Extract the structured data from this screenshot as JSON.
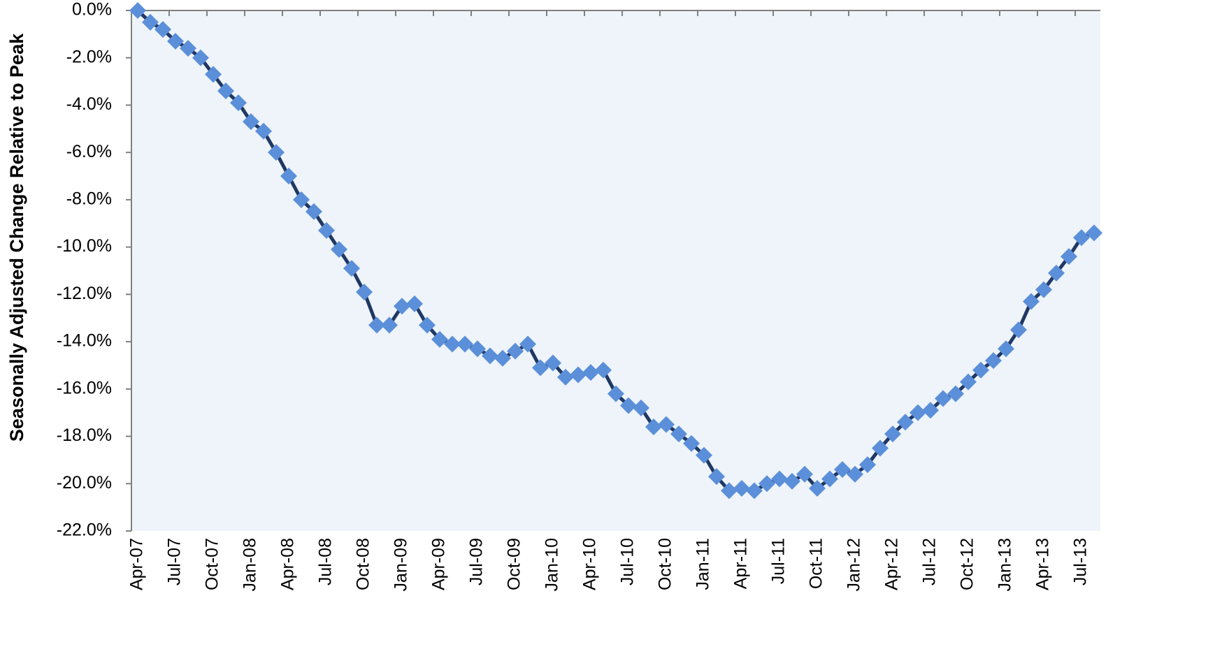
{
  "chart_data": {
    "type": "line",
    "y_label": "Seasonally Adjusted Change Relative to Peak",
    "categories": [
      "Apr-07",
      null,
      null,
      "Jul-07",
      null,
      null,
      "Oct-07",
      null,
      null,
      "Jan-08",
      null,
      null,
      "Apr-08",
      null,
      null,
      "Jul-08",
      null,
      null,
      "Oct-08",
      null,
      null,
      "Jan-09",
      null,
      null,
      "Apr-09",
      null,
      null,
      "Jul-09",
      null,
      null,
      "Oct-09",
      null,
      null,
      "Jan-10",
      null,
      null,
      "Apr-10",
      null,
      null,
      "Jul-10",
      null,
      null,
      "Oct-10",
      null,
      null,
      "Jan-11",
      null,
      null,
      "Apr-11",
      null,
      null,
      "Jul-11",
      null,
      null,
      "Oct-11",
      null,
      null,
      "Jan-12",
      null,
      null,
      "Apr-12",
      null,
      null,
      "Jul-12",
      null,
      null,
      "Oct-12",
      null,
      null,
      "Jan-13",
      null,
      null,
      "Apr-13",
      null,
      null,
      "Jul-13",
      null
    ],
    "values": [
      0.0,
      -0.5,
      -0.8,
      -1.3,
      -1.6,
      -2.0,
      -2.7,
      -3.4,
      -3.9,
      -4.7,
      -5.1,
      -6.0,
      -7.0,
      -8.0,
      -8.5,
      -9.3,
      -10.1,
      -10.9,
      -11.9,
      -13.3,
      -13.3,
      -12.5,
      -12.4,
      -13.3,
      -13.9,
      -14.1,
      -14.1,
      -14.3,
      -14.6,
      -14.7,
      -14.4,
      -14.1,
      -15.1,
      -14.9,
      -15.5,
      -15.4,
      -15.3,
      -15.2,
      -16.2,
      -16.7,
      -16.8,
      -17.6,
      -17.5,
      -17.9,
      -18.3,
      -18.8,
      -19.7,
      -20.3,
      -20.2,
      -20.3,
      -20.0,
      -19.8,
      -19.9,
      -19.6,
      -20.2,
      -19.8,
      -19.4,
      -19.6,
      -19.2,
      -18.5,
      -17.9,
      -17.4,
      -17.0,
      -16.9,
      -16.4,
      -16.2,
      -15.7,
      -15.2,
      -14.8,
      -14.3,
      -13.5,
      -12.3,
      -11.8,
      -11.1,
      -10.4,
      -9.6,
      -9.4
    ],
    "line_color": "#1f3864",
    "marker_color": "#5b8fd9",
    "background": "#eef4fa",
    "ylim": [
      -22,
      0
    ],
    "yticks": [
      {
        "value": 0,
        "label": "0.0%"
      },
      {
        "value": -2,
        "label": "-2.0%"
      },
      {
        "value": -4,
        "label": "-4.0%"
      },
      {
        "value": -6,
        "label": "-6.0%"
      },
      {
        "value": -8,
        "label": "-8.0%"
      },
      {
        "value": -10,
        "label": "-10.0%"
      },
      {
        "value": -12,
        "label": "-12.0%"
      },
      {
        "value": -14,
        "label": "-14.0%"
      },
      {
        "value": -16,
        "label": "-16.0%"
      },
      {
        "value": -18,
        "label": "-18.0%"
      },
      {
        "value": -20,
        "label": "-20.0%"
      },
      {
        "value": -22,
        "label": "-22.0%"
      }
    ]
  }
}
